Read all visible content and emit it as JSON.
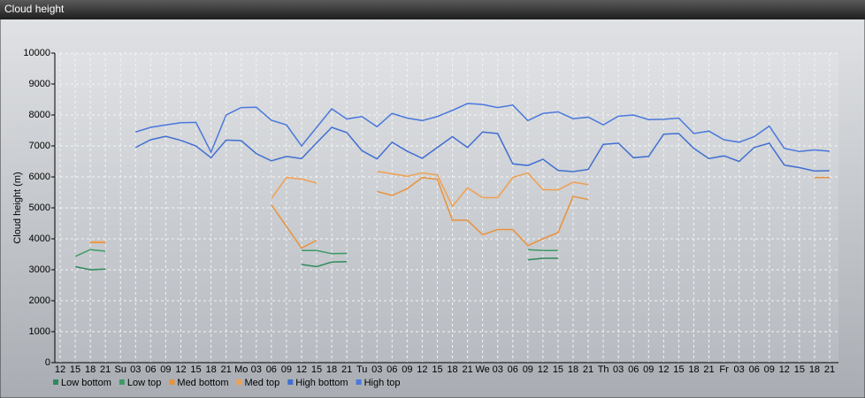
{
  "chart_data": {
    "type": "line",
    "title": "Cloud height",
    "y_label": "Cloud height (m)",
    "categories": [
      "12",
      "15",
      "18",
      "21",
      "Su",
      "03",
      "06",
      "09",
      "12",
      "15",
      "18",
      "21",
      "Mo",
      "03",
      "06",
      "09",
      "12",
      "15",
      "18",
      "21",
      "Tu",
      "03",
      "06",
      "09",
      "12",
      "15",
      "18",
      "21",
      "We",
      "03",
      "06",
      "09",
      "12",
      "15",
      "18",
      "21",
      "Th",
      "03",
      "06",
      "09",
      "12",
      "15",
      "18",
      "21",
      "Fr",
      "03",
      "06",
      "09",
      "12",
      "15",
      "18",
      "21"
    ],
    "ylim": [
      0,
      10000
    ],
    "yticks": [
      0,
      1000,
      2000,
      3000,
      4000,
      5000,
      6000,
      7000,
      8000,
      9000,
      10000
    ],
    "grid": true,
    "series": [
      {
        "name": "Low bottom",
        "color": "#2f8a5c",
        "values": [
          null,
          3100,
          3000,
          3020,
          null,
          null,
          null,
          null,
          null,
          null,
          null,
          null,
          null,
          null,
          null,
          null,
          3170,
          3100,
          3250,
          3260,
          null,
          null,
          null,
          null,
          null,
          null,
          null,
          null,
          null,
          null,
          null,
          3320,
          3370,
          3370,
          null,
          null,
          null,
          null,
          null,
          null,
          null,
          null,
          null,
          null,
          null,
          null,
          null,
          null,
          null,
          null,
          null,
          null
        ]
      },
      {
        "name": "Low top",
        "color": "#3c9a64",
        "values": [
          null,
          3430,
          3650,
          3600,
          null,
          null,
          null,
          null,
          null,
          null,
          null,
          null,
          null,
          null,
          null,
          null,
          3620,
          3620,
          3520,
          3530,
          null,
          null,
          null,
          null,
          null,
          null,
          null,
          null,
          null,
          null,
          null,
          3650,
          3620,
          3620,
          null,
          null,
          null,
          null,
          null,
          null,
          null,
          null,
          null,
          null,
          null,
          null,
          null,
          null,
          null,
          null,
          null,
          null
        ]
      },
      {
        "name": "Med bottom",
        "color": "#e8923a",
        "values": [
          null,
          null,
          3880,
          3880,
          null,
          null,
          null,
          null,
          null,
          null,
          null,
          null,
          null,
          null,
          5100,
          4400,
          3700,
          3950,
          null,
          null,
          null,
          5530,
          5400,
          5620,
          5980,
          5920,
          4600,
          4600,
          4130,
          4300,
          4300,
          3780,
          4000,
          4200,
          5370,
          5270,
          null,
          null,
          null,
          null,
          null,
          null,
          null,
          null,
          null,
          null,
          null,
          null,
          null,
          null,
          5980,
          5980
        ]
      },
      {
        "name": "Med top",
        "color": "#f0a050",
        "values": [
          null,
          null,
          3900,
          3900,
          null,
          null,
          null,
          null,
          null,
          null,
          null,
          null,
          null,
          null,
          5300,
          5980,
          5930,
          5800,
          null,
          null,
          null,
          6180,
          6100,
          6020,
          6130,
          6060,
          5050,
          5650,
          5330,
          5330,
          5980,
          6130,
          5590,
          5580,
          5830,
          5750,
          null,
          null,
          null,
          null,
          null,
          null,
          null,
          null,
          null,
          null,
          null,
          null,
          null,
          null,
          null,
          null
        ]
      },
      {
        "name": "High bottom",
        "color": "#3f6fd0",
        "values": [
          null,
          null,
          null,
          null,
          null,
          6950,
          7200,
          7310,
          7180,
          7000,
          6620,
          7190,
          7170,
          6750,
          6520,
          6660,
          6590,
          7100,
          7600,
          7430,
          6850,
          6580,
          7120,
          6830,
          6600,
          6950,
          7300,
          6950,
          7450,
          7400,
          6420,
          6370,
          6570,
          6210,
          6170,
          6240,
          7050,
          7090,
          6620,
          6660,
          7380,
          7400,
          6920,
          6590,
          6680,
          6500,
          6950,
          7090,
          6380,
          6300,
          6190,
          6200
        ]
      },
      {
        "name": "High top",
        "color": "#4a78dc",
        "values": [
          null,
          null,
          null,
          null,
          null,
          7450,
          7600,
          7680,
          7750,
          7760,
          6800,
          8000,
          8240,
          8250,
          7830,
          7680,
          7000,
          7600,
          8200,
          7870,
          7950,
          7620,
          8050,
          7900,
          7820,
          7950,
          8150,
          8370,
          8340,
          8240,
          8320,
          7820,
          8050,
          8100,
          7880,
          7930,
          7680,
          7960,
          8000,
          7850,
          7860,
          7900,
          7400,
          7480,
          7200,
          7120,
          7300,
          7640,
          6920,
          6820,
          6870,
          6830
        ]
      }
    ]
  }
}
